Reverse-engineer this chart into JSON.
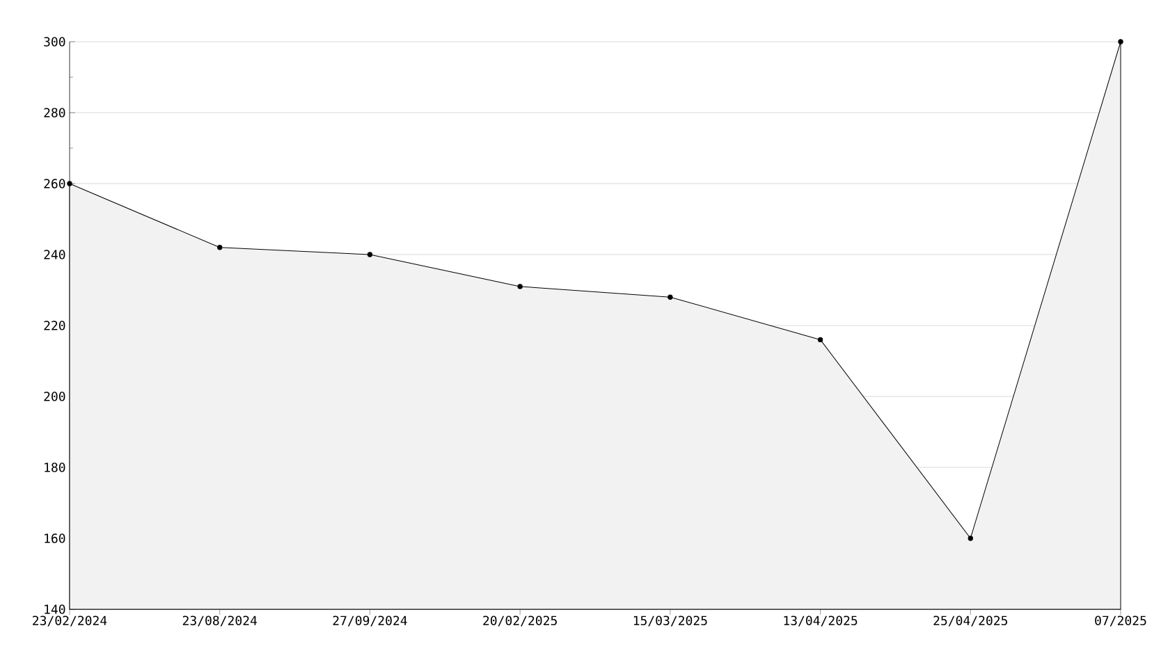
{
  "chart_data": {
    "type": "area",
    "categories": [
      "23/02/2024",
      "23/08/2024",
      "27/09/2024",
      "20/02/2025",
      "15/03/2025",
      "13/04/2025",
      "25/04/2025",
      "07/2025"
    ],
    "values": [
      260,
      242,
      240,
      231,
      228,
      216,
      160,
      300
    ],
    "color": "#f2f2f2",
    "ylim": [
      140,
      300
    ],
    "yticks": [
      140,
      {
        "value": 150,
        "label": null
      },
      160,
      {
        "value": 170,
        "label": null
      },
      180,
      {
        "value": 190,
        "label": null
      },
      200,
      {
        "value": 210,
        "label": null
      },
      220,
      {
        "value": 230,
        "label": null
      },
      240,
      {
        "value": 250,
        "label": null
      },
      260,
      {
        "value": 270,
        "label": null
      },
      280,
      {
        "value": 290,
        "label": null
      },
      300
    ],
    "grid": "y",
    "marker": "circle"
  }
}
